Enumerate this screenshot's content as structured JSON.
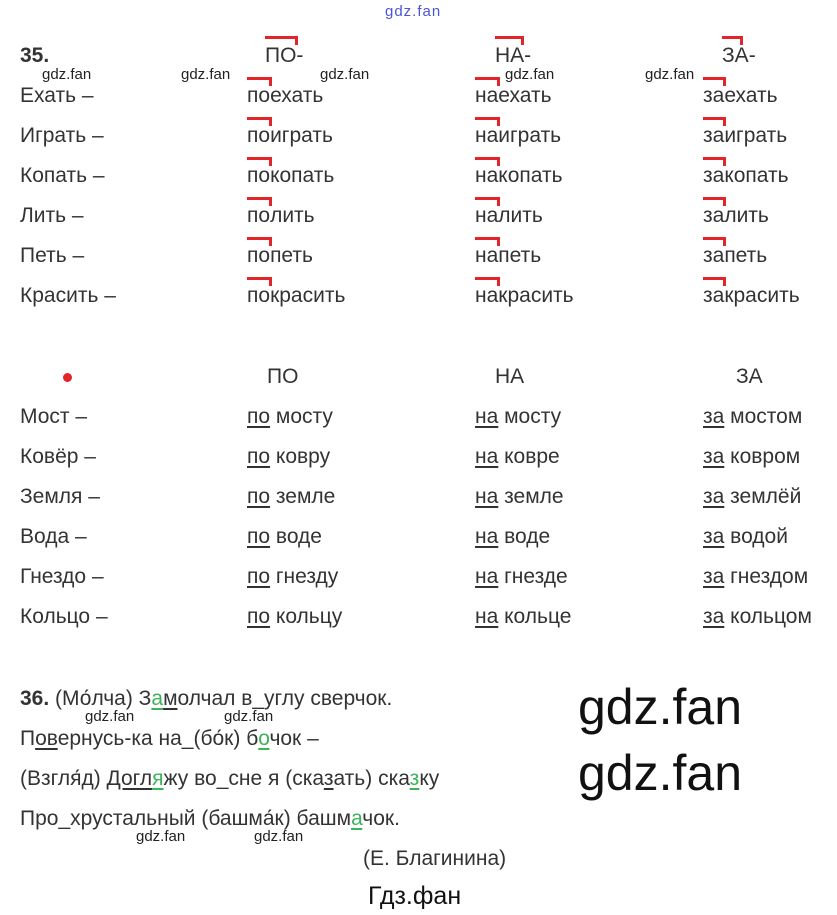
{
  "ex35": {
    "number": "35.",
    "headers": [
      "ПО-",
      "НА-",
      "ЗА-"
    ],
    "verbs": [
      {
        "base": "Ехать –",
        "forms": [
          [
            "по",
            "ехать"
          ],
          [
            "на",
            "ехать"
          ],
          [
            "за",
            "ехать"
          ]
        ]
      },
      {
        "base": "Играть –",
        "forms": [
          [
            "по",
            "играть"
          ],
          [
            "на",
            "играть"
          ],
          [
            "за",
            "играть"
          ]
        ]
      },
      {
        "base": "Копать –",
        "forms": [
          [
            "по",
            "копать"
          ],
          [
            "на",
            "копать"
          ],
          [
            "за",
            "копать"
          ]
        ]
      },
      {
        "base": "Лить –",
        "forms": [
          [
            "по",
            "лить"
          ],
          [
            "на",
            "лить"
          ],
          [
            "за",
            "лить"
          ]
        ]
      },
      {
        "base": "Петь –",
        "forms": [
          [
            "по",
            "петь"
          ],
          [
            "на",
            "петь"
          ],
          [
            "за",
            "петь"
          ]
        ]
      },
      {
        "base": "Красить –",
        "forms": [
          [
            "по",
            "красить"
          ],
          [
            "на",
            "красить"
          ],
          [
            "за",
            "красить"
          ]
        ]
      }
    ],
    "prep_headers": [
      "ПО",
      "НА",
      "ЗА"
    ],
    "nouns": [
      {
        "base": "Мост –",
        "forms": [
          [
            "по",
            " мосту"
          ],
          [
            "на",
            " мосту"
          ],
          [
            "за",
            " мостом"
          ]
        ]
      },
      {
        "base": "Ковёр –",
        "forms": [
          [
            "по",
            " ковру"
          ],
          [
            "на",
            " ковре"
          ],
          [
            "за",
            " ковром"
          ]
        ]
      },
      {
        "base": "Земля –",
        "forms": [
          [
            "по",
            " земле"
          ],
          [
            "на",
            " земле"
          ],
          [
            "за",
            " землёй"
          ]
        ]
      },
      {
        "base": "Вода –",
        "forms": [
          [
            "по",
            " воде"
          ],
          [
            "на",
            " воде"
          ],
          [
            "за",
            " водой"
          ]
        ]
      },
      {
        "base": "Гнездо –",
        "forms": [
          [
            "по",
            " гнезду"
          ],
          [
            "на",
            " гнезде"
          ],
          [
            "за",
            " гнездом"
          ]
        ]
      },
      {
        "base": "Кольцо –",
        "forms": [
          [
            "по",
            " кольцу"
          ],
          [
            "на",
            " кольце"
          ],
          [
            "за",
            " кольцом"
          ]
        ]
      }
    ]
  },
  "ex36": {
    "number": "36.",
    "lines": [
      [
        {
          "t": " (Мо́лча) З"
        },
        {
          "t": "а",
          "s": "ug"
        },
        {
          "t": "м",
          "s": "u"
        },
        {
          "t": "олчал в_углу сверчок."
        }
      ],
      [
        {
          "t": "П"
        },
        {
          "t": "ов",
          "s": "u"
        },
        {
          "t": "ернусь-ка на_(бо́к) б"
        },
        {
          "t": "о",
          "s": "ug"
        },
        {
          "t": "чок –"
        }
      ],
      [
        {
          "t": "(Взгля́д) "
        },
        {
          "t": "Догл",
          "s": "u"
        },
        {
          "t": "я",
          "s": "ug"
        },
        {
          "t": "жу во_сне я (ска"
        },
        {
          "t": "з",
          "s": "u"
        },
        {
          "t": "ать) ска"
        },
        {
          "t": "з",
          "s": "ug"
        },
        {
          "t": "ку"
        }
      ],
      [
        {
          "t": "Про_хрустальный (башма́к) башм"
        },
        {
          "t": "а",
          "s": "ug"
        },
        {
          "t": "чок."
        }
      ]
    ],
    "author": "(Е. Благинина)"
  },
  "footer": "Гдз.фан",
  "watermarks": {
    "small": "gdz.fan",
    "big": "gdz.fan",
    "top": "gdz.fan"
  },
  "colors": {
    "accent": "#e2252b",
    "highlight": "#3cb35a",
    "watermark_top": "#4a55d8"
  }
}
